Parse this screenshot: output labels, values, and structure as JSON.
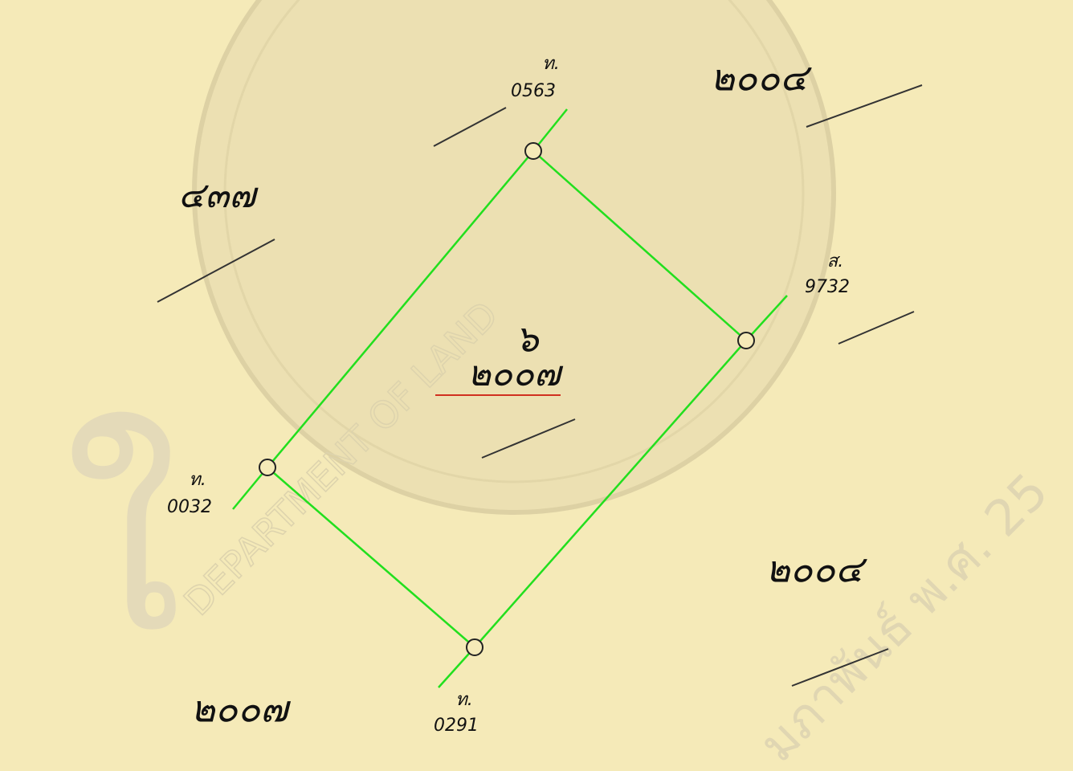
{
  "parcel": {
    "number": "๖",
    "label": "๒๐๐๗"
  },
  "neighbors": [
    {
      "label": "๒๐๐๔"
    },
    {
      "label": "๔๓๗"
    },
    {
      "label": "๒๐๐๔"
    },
    {
      "label": "๒๐๐๗"
    }
  ],
  "markers": [
    {
      "prefix": "ท.",
      "code": "0563"
    },
    {
      "prefix": "ส.",
      "code": "9732"
    },
    {
      "prefix": "ท.",
      "code": "0032"
    },
    {
      "prefix": "ท.",
      "code": "0291"
    }
  ],
  "watermarks": [
    "DEPARTMENT OF LAND",
    "มภาพันธ์ พ.ศ. 25"
  ]
}
